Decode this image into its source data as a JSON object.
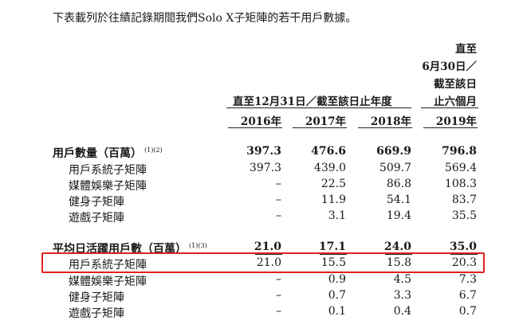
{
  "intro": "下表載列於往績記錄期間我們Solo X子矩陣的若干用戶數據。",
  "header": {
    "group_label": "直至12月31日／截至該日止年度",
    "last_col_lines": [
      "直至",
      "6月30日／",
      "截至該日",
      "止六個月"
    ],
    "years": [
      "2016年",
      "2017年",
      "2018年",
      "2019年"
    ]
  },
  "sections": [
    {
      "title": "用戶數量（百萬）",
      "note": "(1)(2)",
      "values": [
        "397.3",
        "476.6",
        "669.9",
        "796.8"
      ],
      "rows": [
        {
          "label": "用戶系統子矩陣",
          "values": [
            "397.3",
            "439.0",
            "509.7",
            "569.4"
          ]
        },
        {
          "label": "媒體娛樂子矩陣",
          "values": [
            "–",
            "22.5",
            "86.8",
            "108.3"
          ]
        },
        {
          "label": "健身子矩陣",
          "values": [
            "–",
            "11.9",
            "54.1",
            "83.7"
          ]
        },
        {
          "label": "遊戲子矩陣",
          "values": [
            "–",
            "3.1",
            "19.4",
            "35.5"
          ]
        }
      ]
    },
    {
      "title": "平均日活躍用戶數（百萬）",
      "note": "(1)(3)",
      "values": [
        "21.0",
        "17.1",
        "24.0",
        "35.0"
      ],
      "rows": [
        {
          "label": "用戶系統子矩陣",
          "values": [
            "21.0",
            "15.5",
            "15.8",
            "20.3"
          ]
        },
        {
          "label": "媒體娛樂子矩陣",
          "values": [
            "–",
            "0.9",
            "4.5",
            "7.3"
          ]
        },
        {
          "label": "健身子矩陣",
          "values": [
            "–",
            "0.7",
            "3.3",
            "6.7"
          ]
        },
        {
          "label": "遊戲子矩陣",
          "values": [
            "–",
            "0.1",
            "0.4",
            "0.7"
          ]
        }
      ]
    }
  ]
}
